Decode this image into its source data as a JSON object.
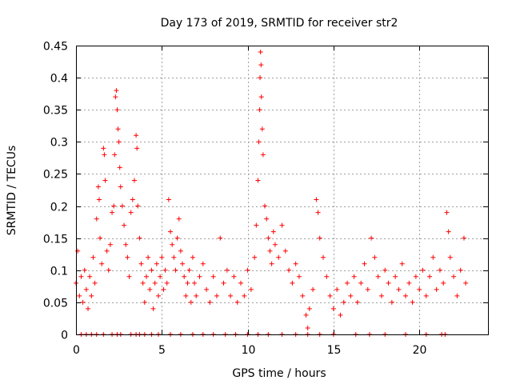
{
  "chart_data": {
    "type": "scatter",
    "title": "Day 173 of 2019, SRMTID for receiver str2",
    "xlabel": "GPS time / hours",
    "ylabel": "SRMTID / TECUs",
    "xlim": [
      0,
      24
    ],
    "ylim": [
      0,
      0.45
    ],
    "xticks": [
      0,
      5,
      10,
      15,
      20
    ],
    "xtick_labels": [
      "0",
      "5",
      "10",
      "15",
      "20"
    ],
    "yticks": [
      0,
      0.05,
      0.1,
      0.15,
      0.2,
      0.25,
      0.3,
      0.35,
      0.4,
      0.45
    ],
    "ytick_labels": [
      "0",
      "0.05",
      "0.1",
      "0.15",
      "0.2",
      "0.25",
      "0.3",
      "0.35",
      "0.4",
      "0.45"
    ],
    "grid": true,
    "marker": "+",
    "series": [
      {
        "name": "str2",
        "color": "#ff0000",
        "points": [
          [
            0.0,
            0.08
          ],
          [
            0.1,
            0.13
          ],
          [
            0.2,
            0.06
          ],
          [
            0.3,
            0.09
          ],
          [
            0.4,
            0.05
          ],
          [
            0.5,
            0.1
          ],
          [
            0.6,
            0.07
          ],
          [
            0.7,
            0.04
          ],
          [
            0.8,
            0.09
          ],
          [
            0.9,
            0.06
          ],
          [
            1.0,
            0.12
          ],
          [
            1.1,
            0.08
          ],
          [
            1.2,
            0.18
          ],
          [
            1.3,
            0.23
          ],
          [
            1.35,
            0.21
          ],
          [
            1.4,
            0.15
          ],
          [
            1.5,
            0.11
          ],
          [
            1.6,
            0.29
          ],
          [
            1.65,
            0.28
          ],
          [
            1.7,
            0.24
          ],
          [
            1.8,
            0.13
          ],
          [
            1.9,
            0.1
          ],
          [
            2.0,
            0.14
          ],
          [
            2.1,
            0.19
          ],
          [
            2.2,
            0.2
          ],
          [
            2.25,
            0.28
          ],
          [
            2.3,
            0.37
          ],
          [
            2.35,
            0.38
          ],
          [
            2.4,
            0.35
          ],
          [
            2.45,
            0.32
          ],
          [
            2.5,
            0.3
          ],
          [
            2.55,
            0.26
          ],
          [
            2.6,
            0.23
          ],
          [
            2.7,
            0.2
          ],
          [
            2.8,
            0.17
          ],
          [
            2.9,
            0.14
          ],
          [
            3.0,
            0.12
          ],
          [
            3.1,
            0.09
          ],
          [
            3.2,
            0.19
          ],
          [
            3.3,
            0.21
          ],
          [
            3.4,
            0.24
          ],
          [
            3.5,
            0.31
          ],
          [
            3.55,
            0.29
          ],
          [
            3.6,
            0.2
          ],
          [
            3.7,
            0.15
          ],
          [
            3.8,
            0.11
          ],
          [
            3.9,
            0.08
          ],
          [
            4.0,
            0.05
          ],
          [
            4.1,
            0.09
          ],
          [
            4.2,
            0.12
          ],
          [
            4.3,
            0.07
          ],
          [
            4.4,
            0.1
          ],
          [
            4.5,
            0.04
          ],
          [
            4.6,
            0.08
          ],
          [
            4.7,
            0.11
          ],
          [
            4.8,
            0.06
          ],
          [
            4.9,
            0.09
          ],
          [
            5.0,
            0.12
          ],
          [
            5.1,
            0.07
          ],
          [
            5.2,
            0.1
          ],
          [
            5.3,
            0.08
          ],
          [
            5.4,
            0.21
          ],
          [
            5.5,
            0.16
          ],
          [
            5.6,
            0.14
          ],
          [
            5.7,
            0.12
          ],
          [
            5.8,
            0.1
          ],
          [
            5.9,
            0.15
          ],
          [
            6.0,
            0.18
          ],
          [
            6.1,
            0.13
          ],
          [
            6.2,
            0.11
          ],
          [
            6.3,
            0.09
          ],
          [
            6.4,
            0.06
          ],
          [
            6.5,
            0.08
          ],
          [
            6.6,
            0.1
          ],
          [
            6.7,
            0.05
          ],
          [
            6.8,
            0.12
          ],
          [
            6.9,
            0.08
          ],
          [
            7.0,
            0.06
          ],
          [
            7.2,
            0.09
          ],
          [
            7.4,
            0.11
          ],
          [
            7.6,
            0.07
          ],
          [
            7.8,
            0.05
          ],
          [
            8.0,
            0.09
          ],
          [
            8.2,
            0.06
          ],
          [
            8.4,
            0.15
          ],
          [
            8.6,
            0.08
          ],
          [
            8.8,
            0.1
          ],
          [
            9.0,
            0.06
          ],
          [
            9.2,
            0.09
          ],
          [
            9.4,
            0.05
          ],
          [
            9.6,
            0.08
          ],
          [
            9.8,
            0.06
          ],
          [
            10.0,
            0.1
          ],
          [
            10.2,
            0.07
          ],
          [
            10.4,
            0.12
          ],
          [
            10.5,
            0.17
          ],
          [
            10.6,
            0.24
          ],
          [
            10.65,
            0.3
          ],
          [
            10.7,
            0.35
          ],
          [
            10.72,
            0.4
          ],
          [
            10.75,
            0.44
          ],
          [
            10.78,
            0.42
          ],
          [
            10.8,
            0.37
          ],
          [
            10.85,
            0.32
          ],
          [
            10.9,
            0.28
          ],
          [
            11.0,
            0.2
          ],
          [
            11.1,
            0.18
          ],
          [
            11.2,
            0.15
          ],
          [
            11.3,
            0.13
          ],
          [
            11.4,
            0.11
          ],
          [
            11.5,
            0.16
          ],
          [
            11.6,
            0.14
          ],
          [
            11.8,
            0.12
          ],
          [
            12.0,
            0.17
          ],
          [
            12.2,
            0.13
          ],
          [
            12.4,
            0.1
          ],
          [
            12.6,
            0.08
          ],
          [
            12.8,
            0.11
          ],
          [
            13.0,
            0.09
          ],
          [
            13.2,
            0.06
          ],
          [
            13.4,
            0.03
          ],
          [
            13.5,
            0.01
          ],
          [
            13.6,
            0.04
          ],
          [
            13.8,
            0.07
          ],
          [
            14.0,
            0.21
          ],
          [
            14.1,
            0.19
          ],
          [
            14.2,
            0.15
          ],
          [
            14.4,
            0.12
          ],
          [
            14.6,
            0.09
          ],
          [
            14.8,
            0.06
          ],
          [
            15.0,
            0.04
          ],
          [
            15.2,
            0.07
          ],
          [
            15.4,
            0.03
          ],
          [
            15.6,
            0.05
          ],
          [
            15.8,
            0.08
          ],
          [
            16.0,
            0.06
          ],
          [
            16.2,
            0.09
          ],
          [
            16.4,
            0.05
          ],
          [
            16.6,
            0.08
          ],
          [
            16.8,
            0.11
          ],
          [
            17.0,
            0.07
          ],
          [
            17.2,
            0.15
          ],
          [
            17.4,
            0.12
          ],
          [
            17.6,
            0.09
          ],
          [
            17.8,
            0.06
          ],
          [
            18.0,
            0.1
          ],
          [
            18.2,
            0.08
          ],
          [
            18.4,
            0.05
          ],
          [
            18.6,
            0.09
          ],
          [
            18.8,
            0.07
          ],
          [
            19.0,
            0.11
          ],
          [
            19.2,
            0.06
          ],
          [
            19.4,
            0.08
          ],
          [
            19.6,
            0.05
          ],
          [
            19.8,
            0.09
          ],
          [
            20.0,
            0.07
          ],
          [
            20.2,
            0.1
          ],
          [
            20.4,
            0.06
          ],
          [
            20.6,
            0.09
          ],
          [
            20.8,
            0.12
          ],
          [
            21.0,
            0.07
          ],
          [
            21.2,
            0.1
          ],
          [
            21.4,
            0.08
          ],
          [
            21.6,
            0.19
          ],
          [
            21.7,
            0.16
          ],
          [
            21.8,
            0.12
          ],
          [
            22.0,
            0.09
          ],
          [
            22.2,
            0.06
          ],
          [
            22.4,
            0.1
          ],
          [
            22.6,
            0.15
          ],
          [
            22.7,
            0.08
          ],
          [
            0.3,
            0.0
          ],
          [
            0.6,
            0.0
          ],
          [
            0.9,
            0.0
          ],
          [
            1.2,
            0.0
          ],
          [
            1.6,
            0.0
          ],
          [
            2.1,
            0.0
          ],
          [
            2.4,
            0.0
          ],
          [
            2.6,
            0.0
          ],
          [
            3.2,
            0.0
          ],
          [
            3.5,
            0.0
          ],
          [
            3.7,
            0.0
          ],
          [
            4.0,
            0.0
          ],
          [
            4.4,
            0.0
          ],
          [
            4.8,
            0.0
          ],
          [
            5.5,
            0.0
          ],
          [
            6.1,
            0.0
          ],
          [
            6.8,
            0.0
          ],
          [
            7.4,
            0.0
          ],
          [
            8.0,
            0.0
          ],
          [
            8.7,
            0.0
          ],
          [
            9.3,
            0.0
          ],
          [
            10.0,
            0.0
          ],
          [
            10.6,
            0.0
          ],
          [
            11.2,
            0.0
          ],
          [
            12.0,
            0.0
          ],
          [
            12.8,
            0.0
          ],
          [
            13.5,
            0.0
          ],
          [
            14.2,
            0.0
          ],
          [
            15.0,
            0.0
          ],
          [
            16.3,
            0.0
          ],
          [
            17.1,
            0.0
          ],
          [
            18.0,
            0.0
          ],
          [
            19.2,
            0.0
          ],
          [
            20.4,
            0.0
          ],
          [
            21.3,
            0.0
          ],
          [
            21.5,
            0.0
          ]
        ]
      }
    ]
  }
}
